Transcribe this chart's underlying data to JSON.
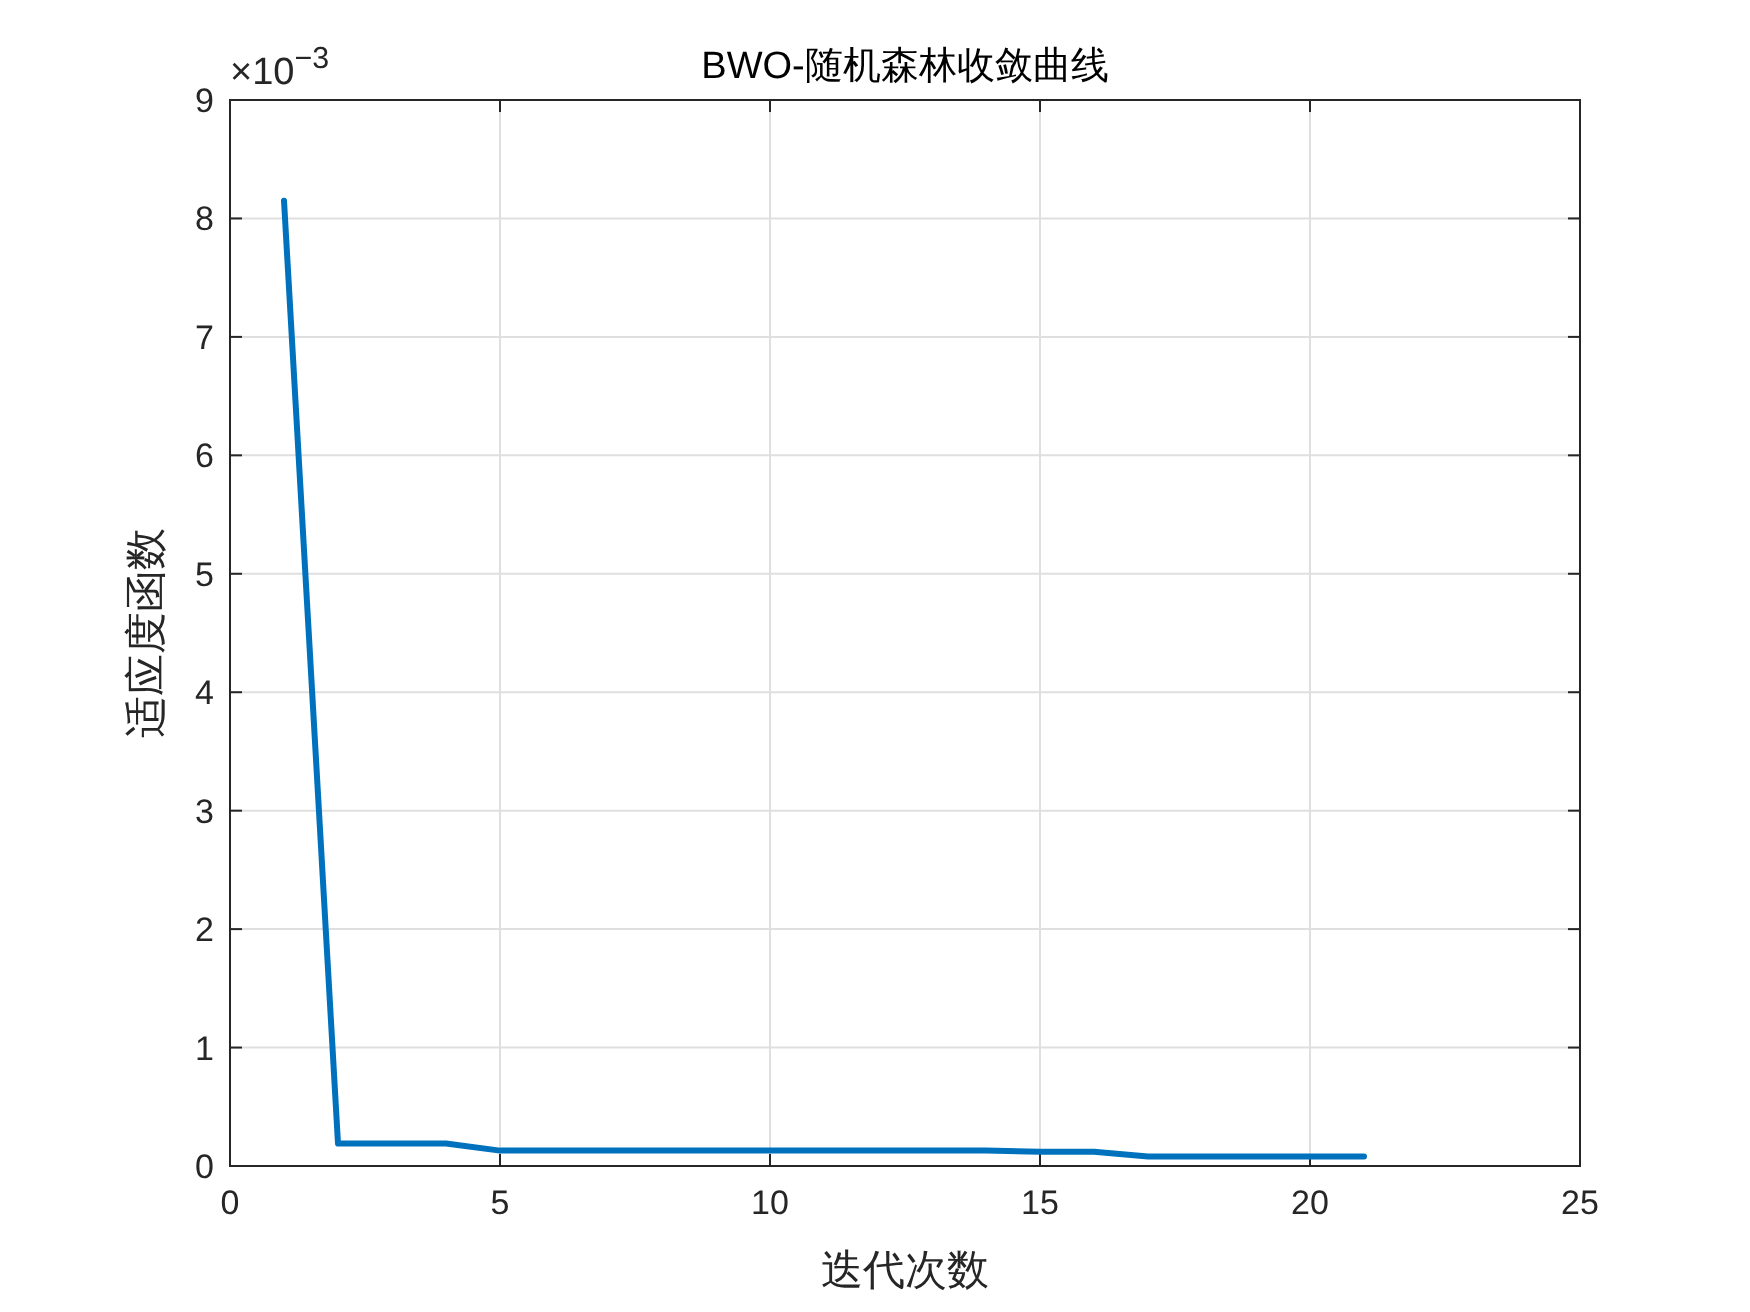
{
  "chart_data": {
    "type": "line",
    "title": "BWO-随机森林收敛曲线",
    "xlabel": "迭代次数",
    "ylabel": "适应度函数",
    "x": [
      1,
      2,
      3,
      4,
      5,
      6,
      7,
      8,
      9,
      10,
      11,
      12,
      13,
      14,
      15,
      16,
      17,
      18,
      19,
      20,
      21
    ],
    "series": [
      {
        "color": "#0072bd",
        "values": [
          8.15,
          0.19,
          0.19,
          0.19,
          0.13,
          0.13,
          0.13,
          0.13,
          0.13,
          0.13,
          0.13,
          0.13,
          0.13,
          0.13,
          0.12,
          0.12,
          0.08,
          0.08,
          0.08,
          0.08,
          0.08
        ]
      }
    ],
    "xlim": [
      0,
      25
    ],
    "xticks": [
      0,
      5,
      10,
      15,
      20,
      25
    ],
    "ylim": [
      0,
      9
    ],
    "yticks": [
      0,
      1,
      2,
      3,
      4,
      5,
      6,
      7,
      8,
      9
    ],
    "annotations": [
      "×10$^{−3}$"
    ],
    "grid": true,
    "marker": "none",
    "line_style": "solid"
  }
}
